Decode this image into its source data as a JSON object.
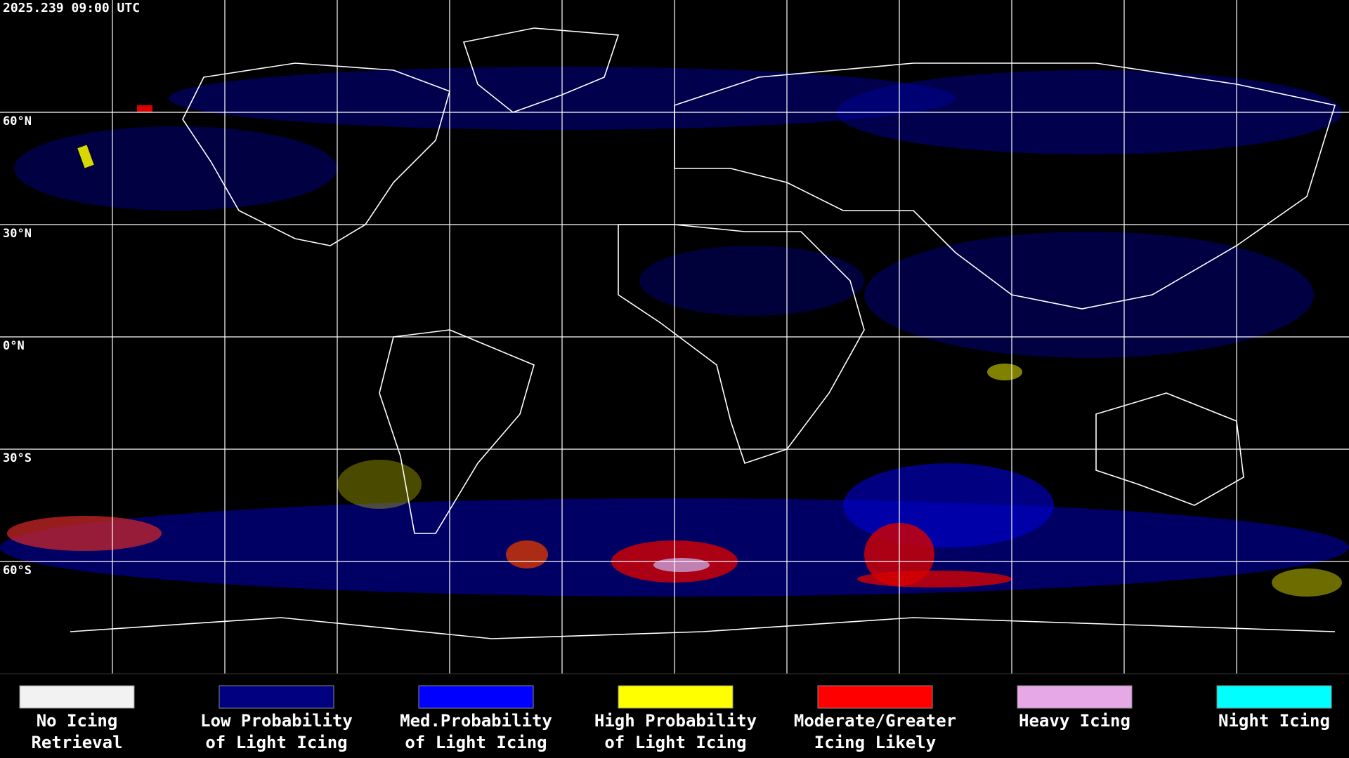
{
  "timestamp": "2025.239 09:00 UTC",
  "lat_labels": [
    "60°N",
    "30°N",
    "0°N",
    "30°S",
    "60°S"
  ],
  "legend": [
    {
      "lines": [
        "No Icing",
        "Retrieval"
      ],
      "color": "#f2f2f2"
    },
    {
      "lines": [
        "Low Probability",
        "of Light Icing"
      ],
      "color": "#000080"
    },
    {
      "lines": [
        "Med.Probability",
        "of Light Icing"
      ],
      "color": "#0000ff"
    },
    {
      "lines": [
        "High Probability",
        "of Light Icing"
      ],
      "color": "#ffff00"
    },
    {
      "lines": [
        "Moderate/Greater",
        "Icing Likely"
      ],
      "color": "#ff0000"
    },
    {
      "lines": [
        "Heavy Icing"
      ],
      "color": "#e6a8e6"
    },
    {
      "lines": [
        "Night Icing"
      ],
      "color": "#00ffff"
    }
  ]
}
